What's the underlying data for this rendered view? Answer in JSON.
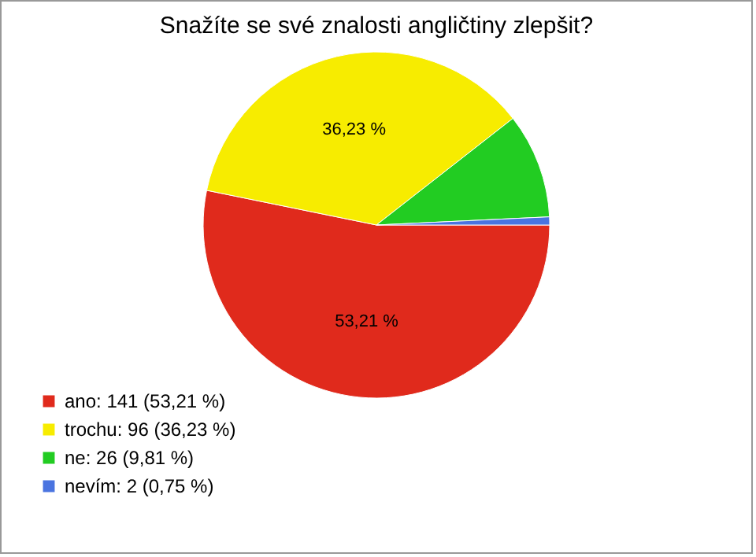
{
  "chart_data": {
    "type": "pie",
    "title": "Snažíte se své znalosti angličtiny zlepšit?",
    "categories": [
      "ano: 141 (53,21 %)",
      "trochu: 96 (36,23 %)",
      "ne: 26 (9,81 %)",
      "nevím: 2 (0,75 %)"
    ],
    "values": [
      53.21,
      36.23,
      9.81,
      0.75
    ],
    "colors": [
      "#e02a1c",
      "#f7ec00",
      "#22cc22",
      "#4a74e0"
    ],
    "value_labels": [
      "53,21 %",
      "36,23 %",
      null,
      null
    ],
    "legend": "bottom left"
  }
}
